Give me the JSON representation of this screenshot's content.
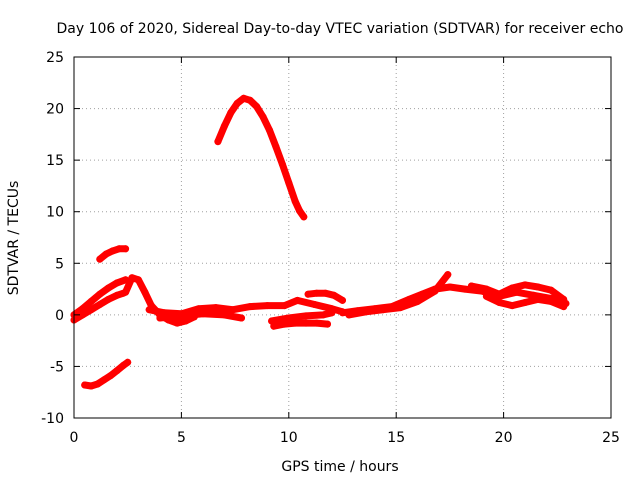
{
  "chart_data": {
    "type": "scatter",
    "title": "Day 106 of 2020, Sidereal Day-to-day VTEC variation (SDTVAR) for receiver echo",
    "xlabel": "GPS time / hours",
    "ylabel": "SDTVAR / TECUs",
    "xlim": [
      0,
      25
    ],
    "ylim": [
      -10,
      25
    ],
    "xticks": [
      0,
      5,
      10,
      15,
      20,
      25
    ],
    "yticks": [
      -10,
      -5,
      0,
      5,
      10,
      15,
      20,
      25
    ],
    "grid": true,
    "color": "#ff0000",
    "series": [
      {
        "name": "track-arc-high",
        "x": [
          6.7,
          7.0,
          7.3,
          7.6,
          7.9,
          8.2,
          8.5,
          8.8,
          9.1,
          9.4,
          9.7,
          10.0,
          10.3,
          10.5,
          10.7
        ],
        "y": [
          16.8,
          18.3,
          19.6,
          20.5,
          21.0,
          20.8,
          20.2,
          19.2,
          17.9,
          16.3,
          14.6,
          12.8,
          11.0,
          10.1,
          9.5
        ]
      },
      {
        "name": "track-short-top",
        "x": [
          1.2,
          1.5,
          1.8,
          2.1,
          2.4
        ],
        "y": [
          5.4,
          5.9,
          6.2,
          6.4,
          6.4
        ]
      },
      {
        "name": "track-negative",
        "x": [
          0.5,
          0.8,
          1.1,
          1.4,
          1.7,
          2.0,
          2.3,
          2.5
        ],
        "y": [
          -6.8,
          -6.9,
          -6.7,
          -6.3,
          -5.9,
          -5.4,
          -4.9,
          -4.6
        ]
      },
      {
        "name": "track-ramp-a",
        "x": [
          0.0,
          0.4,
          0.8,
          1.2,
          1.6,
          2.0,
          2.4
        ],
        "y": [
          0.0,
          0.6,
          1.3,
          2.0,
          2.6,
          3.1,
          3.4
        ]
      },
      {
        "name": "track-ramp-b",
        "x": [
          0.0,
          0.4,
          0.8,
          1.2,
          1.6,
          2.0,
          2.3
        ],
        "y": [
          -0.5,
          0.0,
          0.5,
          1.0,
          1.5,
          1.9,
          2.1
        ]
      },
      {
        "name": "track-hump",
        "x": [
          2.4,
          2.7,
          3.0,
          3.3,
          3.6,
          4.0,
          4.4,
          4.8,
          5.2,
          5.6
        ],
        "y": [
          2.2,
          3.6,
          3.4,
          2.2,
          0.9,
          0.0,
          -0.5,
          -0.8,
          -0.6,
          -0.2
        ]
      },
      {
        "name": "track-flat-a",
        "x": [
          3.5,
          4.2,
          5.0,
          5.8,
          6.6,
          7.4,
          8.2,
          9.0,
          9.8,
          10.4,
          11.2,
          12.0,
          12.5
        ],
        "y": [
          0.5,
          0.2,
          0.1,
          0.6,
          0.7,
          0.5,
          0.8,
          0.9,
          0.9,
          1.4,
          1.0,
          0.6,
          0.3
        ]
      },
      {
        "name": "track-flat-b",
        "x": [
          4.0,
          5.0,
          6.0,
          7.0,
          7.8
        ],
        "y": [
          -0.3,
          -0.1,
          0.1,
          0.0,
          -0.3
        ]
      },
      {
        "name": "track-flat-c",
        "x": [
          9.2,
          10.0,
          10.8,
          11.6,
          12.0
        ],
        "y": [
          -0.6,
          -0.3,
          -0.1,
          0.0,
          0.2
        ]
      },
      {
        "name": "track-low-short",
        "x": [
          9.3,
          9.8,
          10.3,
          10.8,
          11.3,
          11.8
        ],
        "y": [
          -1.1,
          -0.9,
          -0.8,
          -0.8,
          -0.8,
          -0.9
        ]
      },
      {
        "name": "track-mid-hump",
        "x": [
          10.9,
          11.3,
          11.7,
          12.1,
          12.5
        ],
        "y": [
          2.0,
          2.1,
          2.1,
          1.9,
          1.4
        ]
      },
      {
        "name": "track-right-a",
        "x": [
          12.5,
          13.2,
          14.0,
          14.8,
          15.6,
          16.2,
          16.8,
          17.5,
          18.2,
          19.0,
          19.8,
          20.6,
          21.4,
          22.2,
          22.9
        ],
        "y": [
          0.2,
          0.4,
          0.6,
          0.8,
          1.5,
          2.0,
          2.5,
          2.7,
          2.5,
          2.3,
          1.8,
          2.2,
          1.9,
          1.6,
          1.1
        ]
      },
      {
        "name": "track-right-b",
        "x": [
          12.8,
          13.6,
          14.4,
          15.2,
          16.0,
          16.8,
          17.4
        ],
        "y": [
          0.0,
          0.3,
          0.5,
          0.7,
          1.3,
          2.3,
          3.9
        ]
      },
      {
        "name": "track-right-c",
        "x": [
          18.5,
          19.2,
          19.8,
          20.4,
          21.0,
          21.6,
          22.2,
          22.8
        ],
        "y": [
          2.8,
          2.5,
          2.0,
          2.6,
          2.9,
          2.7,
          2.4,
          1.5
        ]
      },
      {
        "name": "track-right-d",
        "x": [
          19.2,
          19.8,
          20.4,
          21.0,
          21.6,
          22.2,
          22.8
        ],
        "y": [
          1.8,
          1.2,
          0.9,
          1.2,
          1.5,
          1.3,
          0.8
        ]
      }
    ]
  }
}
